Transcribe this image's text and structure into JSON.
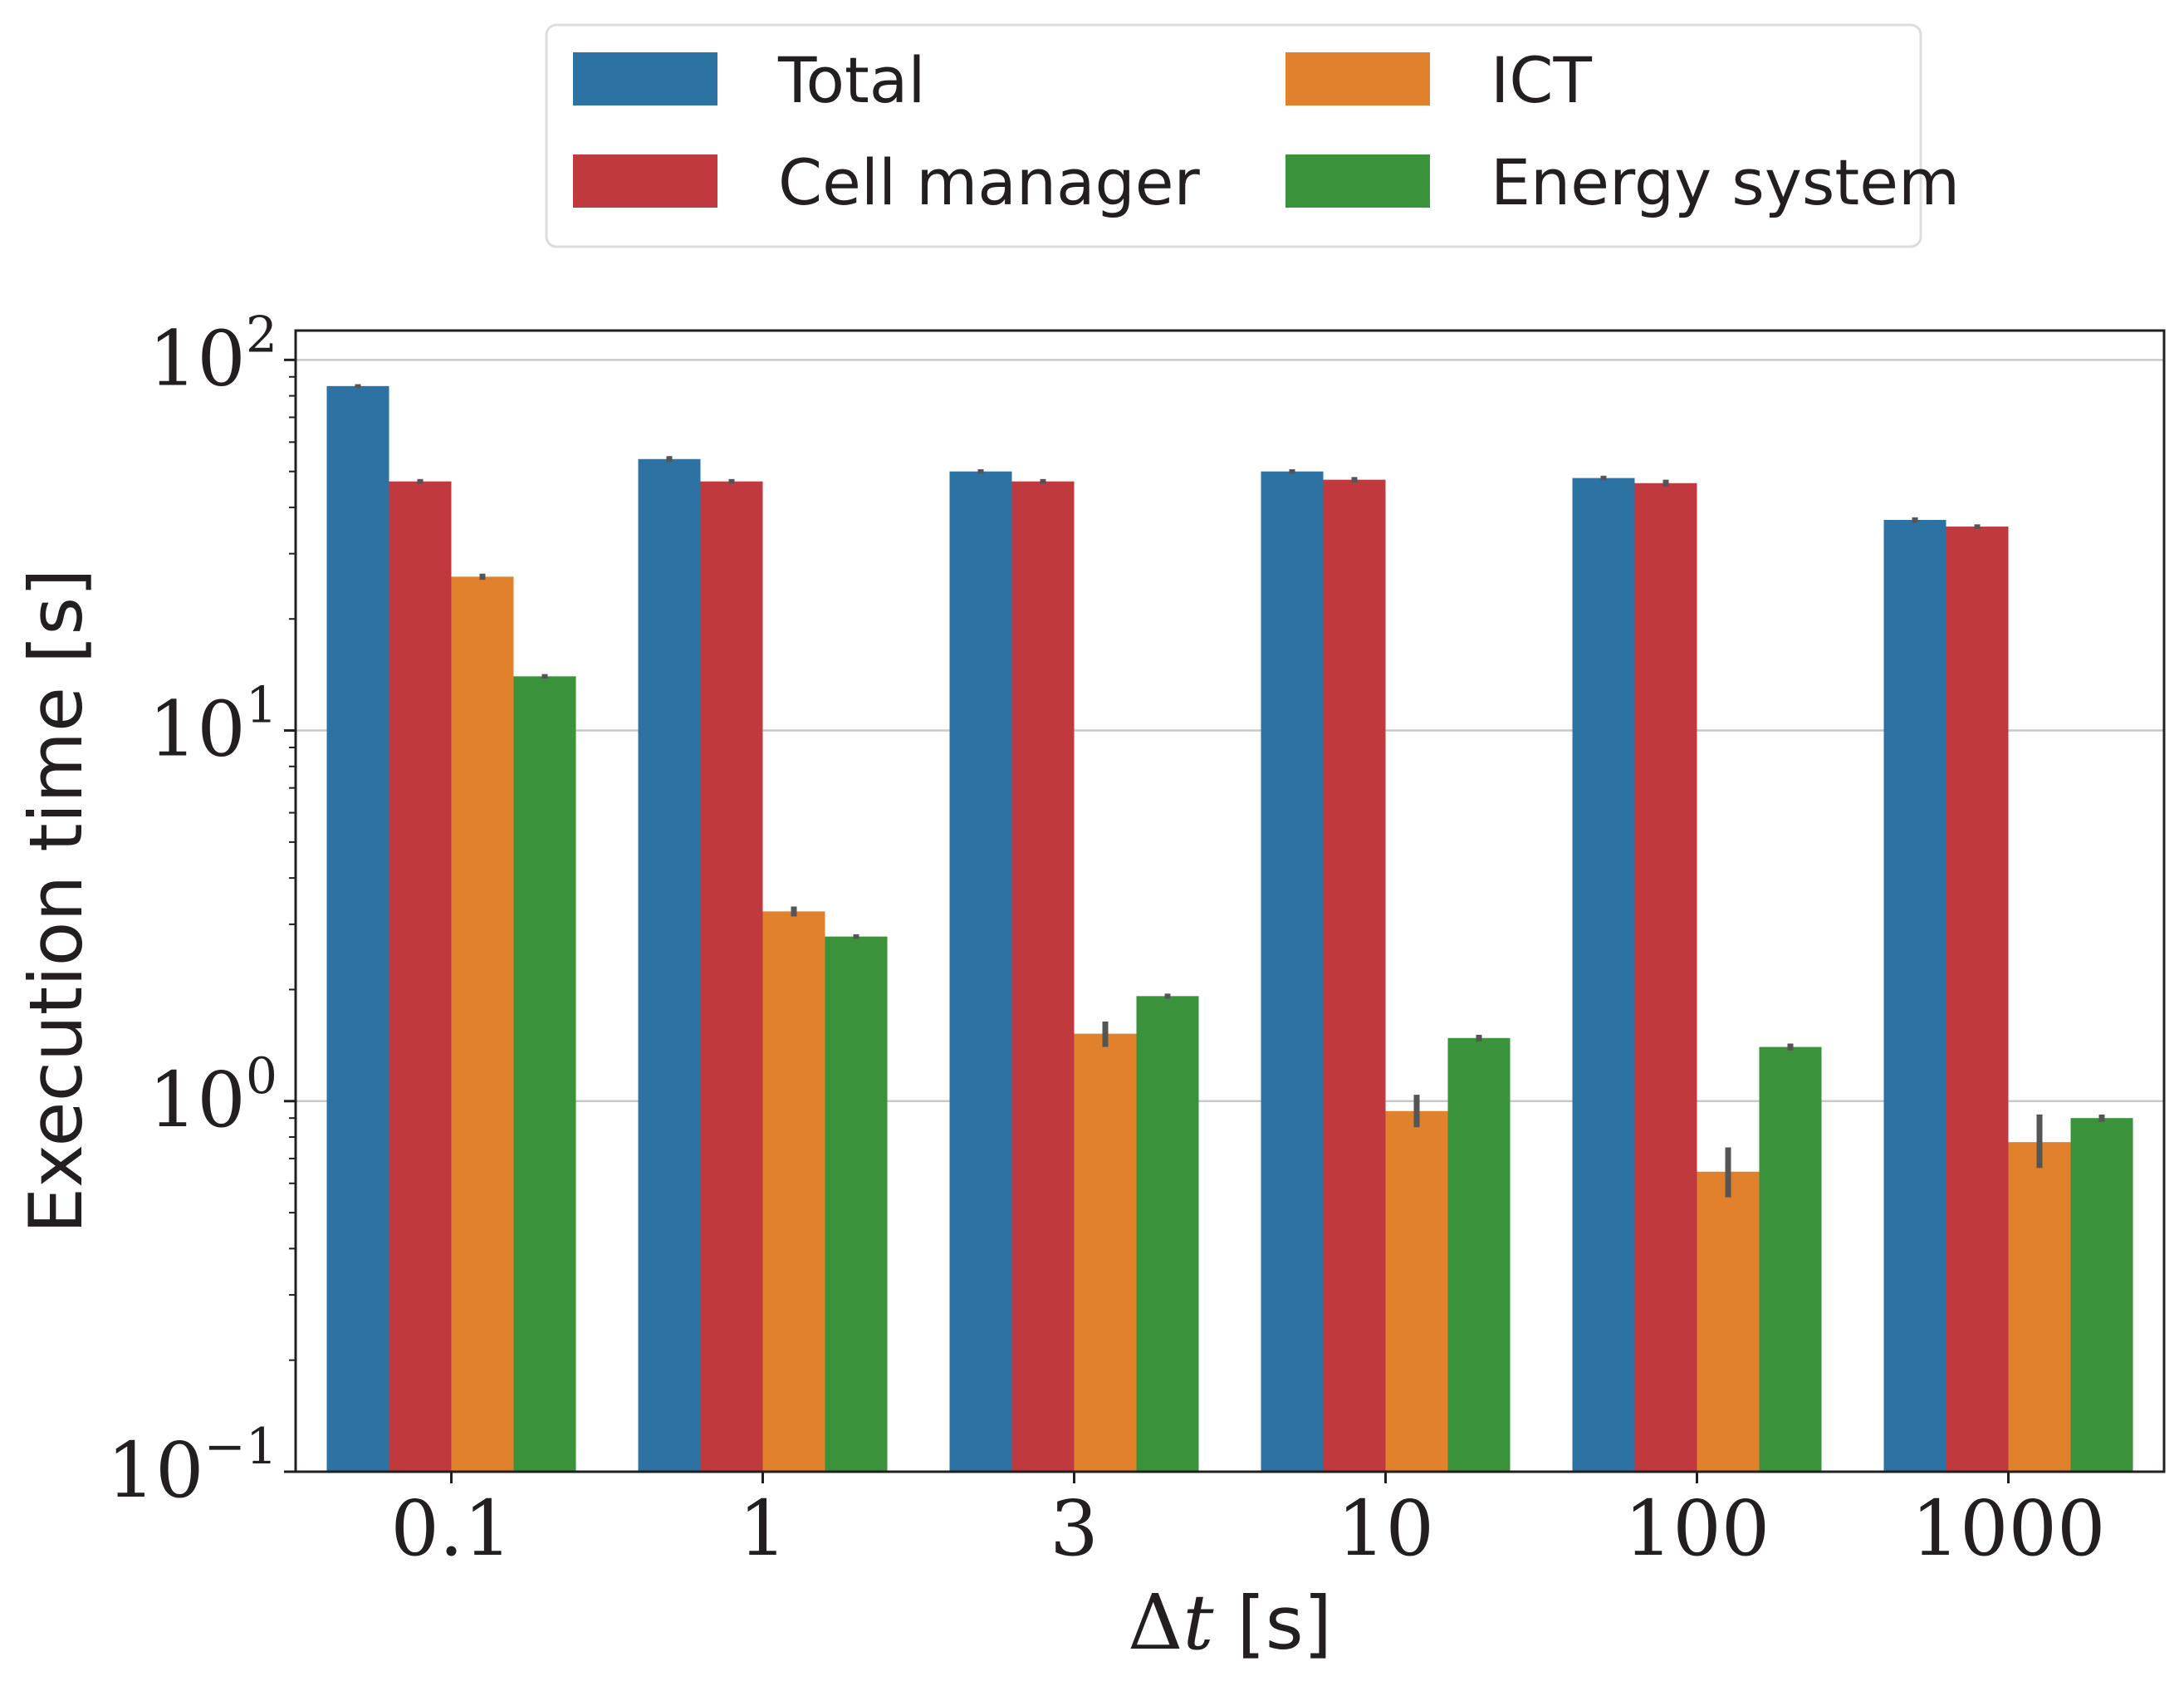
{
  "chart_data": {
    "type": "bar",
    "title": "",
    "xlabel": "Δt [s]",
    "xlabel_symbol": "Δ",
    "xlabel_var": "t",
    "xlabel_unit": " [s]",
    "ylabel": "Execution time [s]",
    "yscale": "log",
    "ylim": [
      0.1,
      120
    ],
    "yticks": [
      {
        "base": "10",
        "exp": "−1",
        "value": 0.1
      },
      {
        "base": "10",
        "exp": "0",
        "value": 1
      },
      {
        "base": "10",
        "exp": "1",
        "value": 10
      },
      {
        "base": "10",
        "exp": "2",
        "value": 100
      }
    ],
    "grid": "y-major",
    "legend_position": "top-center",
    "categories": [
      "0.1",
      "1",
      "3",
      "10",
      "100",
      "1000"
    ],
    "series": [
      {
        "name": "Total",
        "color": "#2c72a3",
        "values": [
          85,
          54,
          50,
          50,
          48,
          37
        ],
        "err_low": [
          84,
          53,
          49.3,
          49.3,
          47.3,
          36.4
        ],
        "err_high": [
          86,
          55,
          50.7,
          50.7,
          48.7,
          37.6
        ]
      },
      {
        "name": "Cell manager",
        "color": "#c0393f",
        "values": [
          47,
          47,
          47,
          47.5,
          46.5,
          35.5
        ],
        "err_low": [
          46.3,
          46.3,
          46.3,
          46.7,
          45.5,
          35
        ],
        "err_high": [
          47.7,
          47.7,
          47.7,
          48.3,
          47.5,
          36
        ]
      },
      {
        "name": "ICT",
        "color": "#e1812c",
        "values": [
          26,
          3.25,
          1.52,
          0.94,
          0.645,
          0.775
        ],
        "err_low": [
          25.5,
          3.15,
          1.4,
          0.85,
          0.55,
          0.66
        ],
        "err_high": [
          26.5,
          3.35,
          1.64,
          1.04,
          0.75,
          0.92
        ]
      },
      {
        "name": "Energy system",
        "color": "#3a923a",
        "values": [
          14,
          2.78,
          1.92,
          1.48,
          1.4,
          0.9
        ],
        "err_low": [
          13.8,
          2.74,
          1.89,
          1.45,
          1.37,
          0.88
        ],
        "err_high": [
          14.2,
          2.82,
          1.95,
          1.51,
          1.43,
          0.92
        ]
      }
    ]
  }
}
